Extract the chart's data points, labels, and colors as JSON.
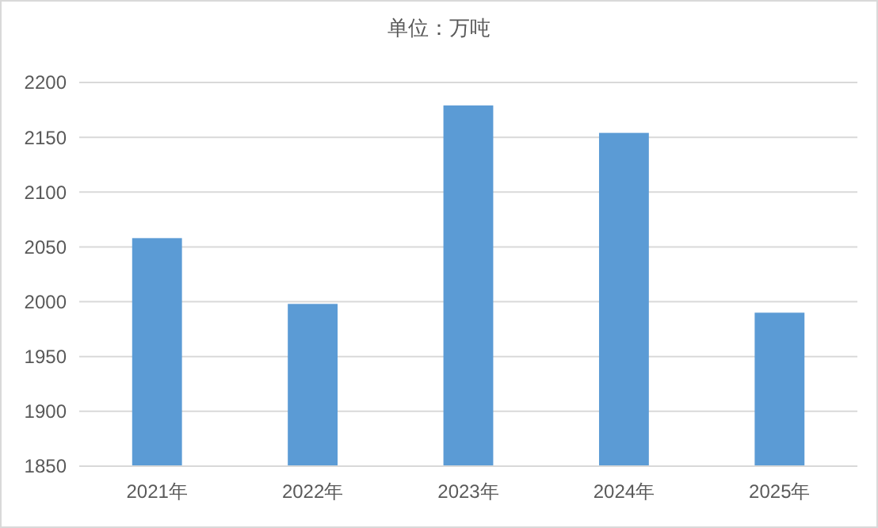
{
  "chart_data": {
    "type": "bar",
    "title": "单位：万吨",
    "categories": [
      "2021年",
      "2022年",
      "2023年",
      "2024年",
      "2025年"
    ],
    "values": [
      2058,
      1998,
      2179,
      2154,
      1990
    ],
    "color": "#5b9bd5",
    "ylim": [
      1850,
      2200
    ],
    "yticks": [
      1850,
      1900,
      1950,
      2000,
      2050,
      2100,
      2150,
      2200
    ],
    "grid": "y"
  }
}
